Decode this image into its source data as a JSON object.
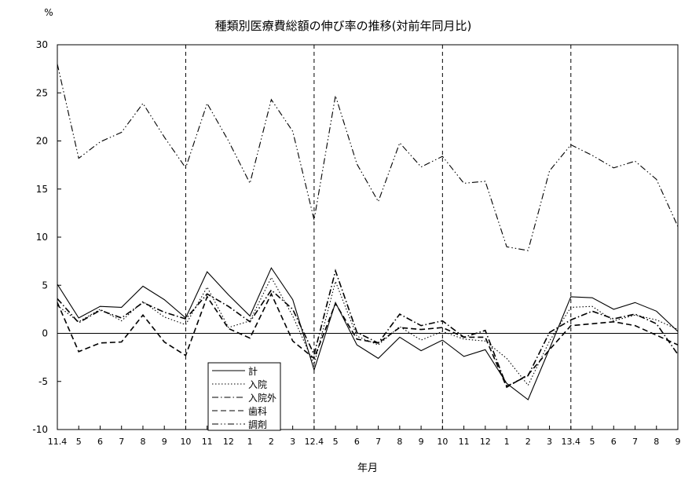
{
  "chart_data": {
    "type": "line",
    "title": "種類別医療費総額の伸び率の推移(対前年同月比)",
    "xlabel": "年月",
    "ylabel": "%",
    "ylim": [
      -10,
      30
    ],
    "yticks": [
      -10,
      -5,
      0,
      5,
      10,
      15,
      20,
      25,
      30
    ],
    "categories": [
      "11.4",
      "5",
      "6",
      "7",
      "8",
      "9",
      "10",
      "11",
      "12",
      "1",
      "2",
      "3",
      "12.4",
      "5",
      "6",
      "7",
      "8",
      "9",
      "10",
      "11",
      "12",
      "1",
      "2",
      "3",
      "13.4",
      "5",
      "6",
      "7",
      "8",
      "9"
    ],
    "grid": false,
    "legend_position": "bottom-left",
    "vertical_dashed_lines_at": [
      "10",
      "12.4",
      "10",
      "13.4"
    ],
    "series": [
      {
        "name": "計",
        "style": "solid",
        "values": [
          5.1,
          1.6,
          2.8,
          2.7,
          4.9,
          3.5,
          1.6,
          6.4,
          4.0,
          1.8,
          6.8,
          3.5,
          -3.8,
          3.2,
          -1.2,
          -2.6,
          -0.4,
          -1.8,
          -0.7,
          -2.4,
          -1.7,
          -5.2,
          -6.9,
          -1.6,
          3.8,
          3.7,
          2.5,
          3.2,
          2.3,
          0.2
        ]
      },
      {
        "name": "入院",
        "style": "dotted",
        "values": [
          2.9,
          1.2,
          2.5,
          1.3,
          3.3,
          1.7,
          0.9,
          4.8,
          0.6,
          1.3,
          5.8,
          1.8,
          -3.2,
          5.4,
          -0.3,
          -1.2,
          0.7,
          -0.7,
          0.2,
          -0.6,
          -0.8,
          -2.6,
          -5.4,
          -0.8,
          2.7,
          2.8,
          1.3,
          1.9,
          1.4,
          0.4
        ]
      },
      {
        "name": "入院外",
        "style": "dashdot",
        "values": [
          3.6,
          1.1,
          2.4,
          1.6,
          3.2,
          2.2,
          1.5,
          4.1,
          2.8,
          1.2,
          4.5,
          2.5,
          -2.2,
          6.5,
          0.1,
          -1.0,
          2.0,
          0.8,
          1.3,
          -0.4,
          0.3,
          -5.5,
          -4.4,
          0.1,
          1.4,
          2.3,
          1.5,
          2.0,
          1.0,
          -2.2
        ]
      },
      {
        "name": "歯科",
        "style": "dashed",
        "values": [
          3.2,
          -1.9,
          -1.0,
          -0.9,
          1.9,
          -0.9,
          -2.3,
          3.8,
          0.5,
          -0.5,
          4.1,
          -0.8,
          -2.6,
          3.1,
          -0.6,
          -1.0,
          0.6,
          0.4,
          0.6,
          -0.4,
          -0.4,
          -5.6,
          -4.3,
          -1.7,
          0.8,
          1.0,
          1.2,
          0.8,
          -0.2,
          -1.2
        ]
      },
      {
        "name": "調剤",
        "style": "dashdotdot",
        "values": [
          28.0,
          18.2,
          19.9,
          20.9,
          23.9,
          20.4,
          17.2,
          23.9,
          20.0,
          15.6,
          24.3,
          21.0,
          11.8,
          24.7,
          17.6,
          13.7,
          19.8,
          17.3,
          18.4,
          15.6,
          15.8,
          9.0,
          8.6,
          16.9,
          19.6,
          18.5,
          17.2,
          17.9,
          16.0,
          11.1
        ]
      }
    ]
  }
}
